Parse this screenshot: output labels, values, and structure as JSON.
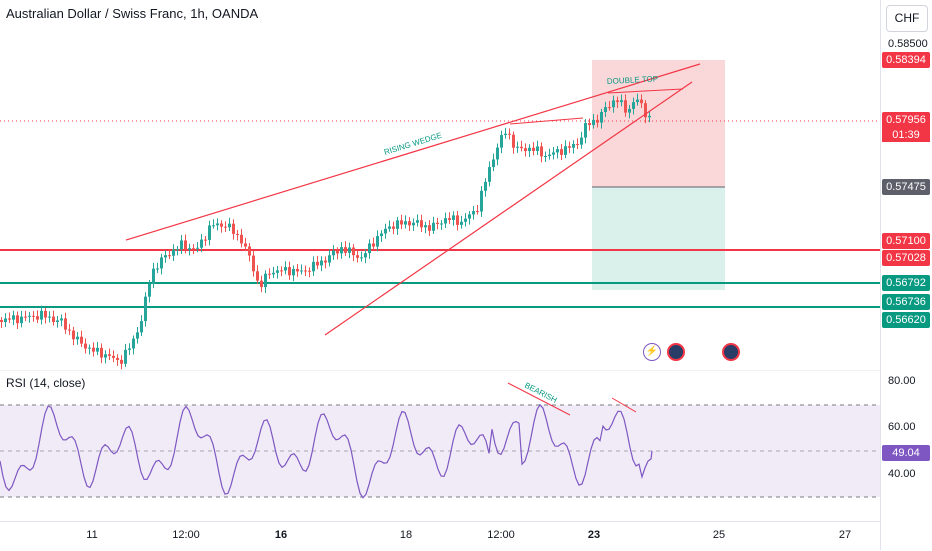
{
  "header": {
    "symbol_title": "Australian Dollar / Swiss Franc, 1h, OANDA"
  },
  "currency_button": "CHF",
  "price_axis": {
    "labels": [
      "0.58500"
    ]
  },
  "price_tags": {
    "tp_price": "0.58394",
    "current_price": "0.57956",
    "countdown": "01:39",
    "entry_price": "0.57475",
    "level_red_1": "0.57100",
    "level_red_2": "0.57028",
    "level_green_1": "0.56792",
    "level_green_2": "0.56736",
    "level_green_3": "0.56620"
  },
  "annotations": {
    "rising_wedge": "RISING WEDGE",
    "double_top": "DOUBLE TOP",
    "bearish": "BEARISH"
  },
  "rsi": {
    "title": "RSI (14, close)",
    "axis_labels": [
      "80.00",
      "60.00",
      "40.00"
    ],
    "current_value": "49.04"
  },
  "time_axis": {
    "labels": [
      "11",
      "12:00",
      "16",
      "18",
      "12:00",
      "23",
      "25",
      "27"
    ]
  },
  "colors": {
    "bull": "#26a69a",
    "bear": "#ef5350",
    "drawing_red": "#f23645",
    "drawing_green": "#089981",
    "rsi_line": "#7e57c2",
    "rsi_band": "#ede7f6",
    "stop_zone": "#f9d0d2",
    "target_zone": "#d6efe9",
    "tag_dark": "#5d606b"
  },
  "events": [
    {
      "name": "lightning-event-icon",
      "glyph": "⚡"
    },
    {
      "name": "economic-event-icon-1",
      "glyph": "●"
    },
    {
      "name": "economic-event-icon-2",
      "glyph": "●"
    }
  ]
}
